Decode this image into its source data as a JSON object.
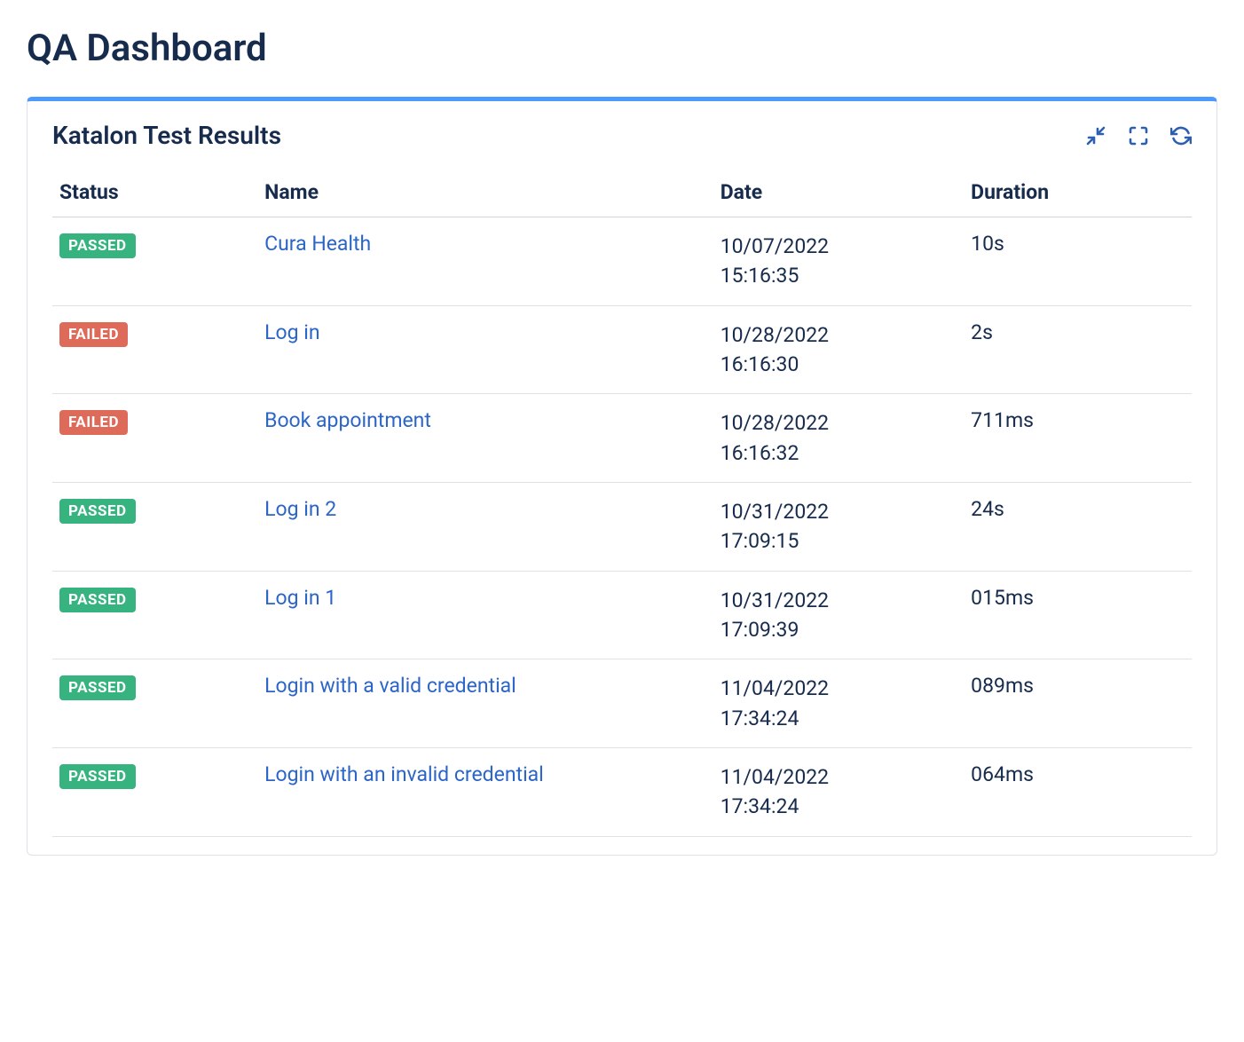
{
  "page": {
    "title": "QA Dashboard"
  },
  "card": {
    "title": "Katalon Test Results",
    "accent_color": "#4c9aff"
  },
  "status_styles": {
    "PASSED": {
      "bg": "#36b37e",
      "text": "#ffffff"
    },
    "FAILED": {
      "bg": "#de6a5a",
      "text": "#ffffff"
    }
  },
  "colors": {
    "heading": "#172b4d",
    "link": "#2b65c7",
    "border": "#dfe1e6",
    "icon": "#2d5fb0"
  },
  "table": {
    "columns": [
      "Status",
      "Name",
      "Date",
      "Duration"
    ],
    "rows": [
      {
        "status": "PASSED",
        "name": "Cura Health",
        "date": "10/07/2022 15:16:35",
        "duration": "10s"
      },
      {
        "status": "FAILED",
        "name": "Log in",
        "date": "10/28/2022 16:16:30",
        "duration": "2s"
      },
      {
        "status": "FAILED",
        "name": "Book appointment",
        "date": "10/28/2022 16:16:32",
        "duration": "711ms"
      },
      {
        "status": "PASSED",
        "name": "Log in 2",
        "date": "10/31/2022 17:09:15",
        "duration": "24s"
      },
      {
        "status": "PASSED",
        "name": "Log in 1",
        "date": "10/31/2022 17:09:39",
        "duration": "015ms"
      },
      {
        "status": "PASSED",
        "name": "Login with a valid credential",
        "date": "11/04/2022 17:34:24",
        "duration": "089ms"
      },
      {
        "status": "PASSED",
        "name": "Login with an invalid credential",
        "date": "11/04/2022 17:34:24",
        "duration": "064ms"
      }
    ]
  }
}
